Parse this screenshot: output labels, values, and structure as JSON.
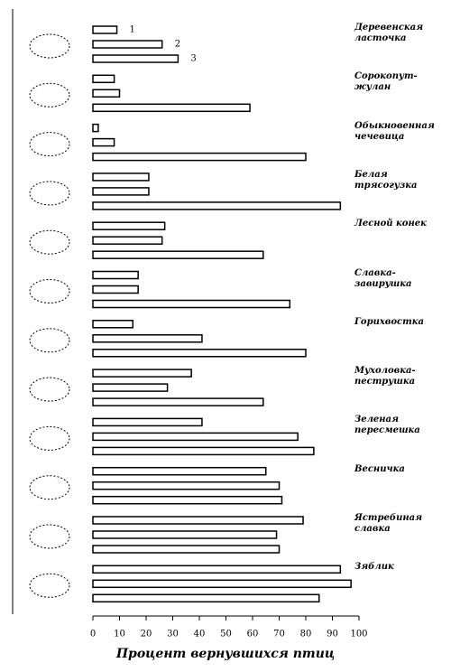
{
  "chart_data": {
    "type": "barh",
    "categories": [
      "Деревенская ласточка",
      "Сорокопут-жулан",
      "Обыкновенная чечевица",
      "Белая трясогузка",
      "Лесной конек",
      "Славка-завирушка",
      "Горихвостка",
      "Мухоловка-пеструшка",
      "Зеленая пересмешка",
      "Весничка",
      "Ястребиная славка",
      "Зяблик"
    ],
    "series": [
      {
        "name": "1",
        "color": "#ffffff",
        "values": [
          9,
          8,
          2,
          21,
          27,
          17,
          15,
          37,
          41,
          65,
          79,
          93
        ]
      },
      {
        "name": "2",
        "color": "#ffffff",
        "values": [
          26,
          10,
          8,
          21,
          26,
          17,
          41,
          28,
          77,
          70,
          69,
          97
        ]
      },
      {
        "name": "3",
        "color": "#ffffff",
        "values": [
          32,
          59,
          80,
          93,
          64,
          74,
          80,
          64,
          83,
          71,
          70,
          85
        ]
      }
    ],
    "xlabel": "Процент вернувшихся птиц",
    "xlim": [
      0,
      100
    ],
    "xticks": [
      0,
      10,
      20,
      30,
      40,
      50,
      60,
      70,
      80,
      90,
      100
    ]
  }
}
